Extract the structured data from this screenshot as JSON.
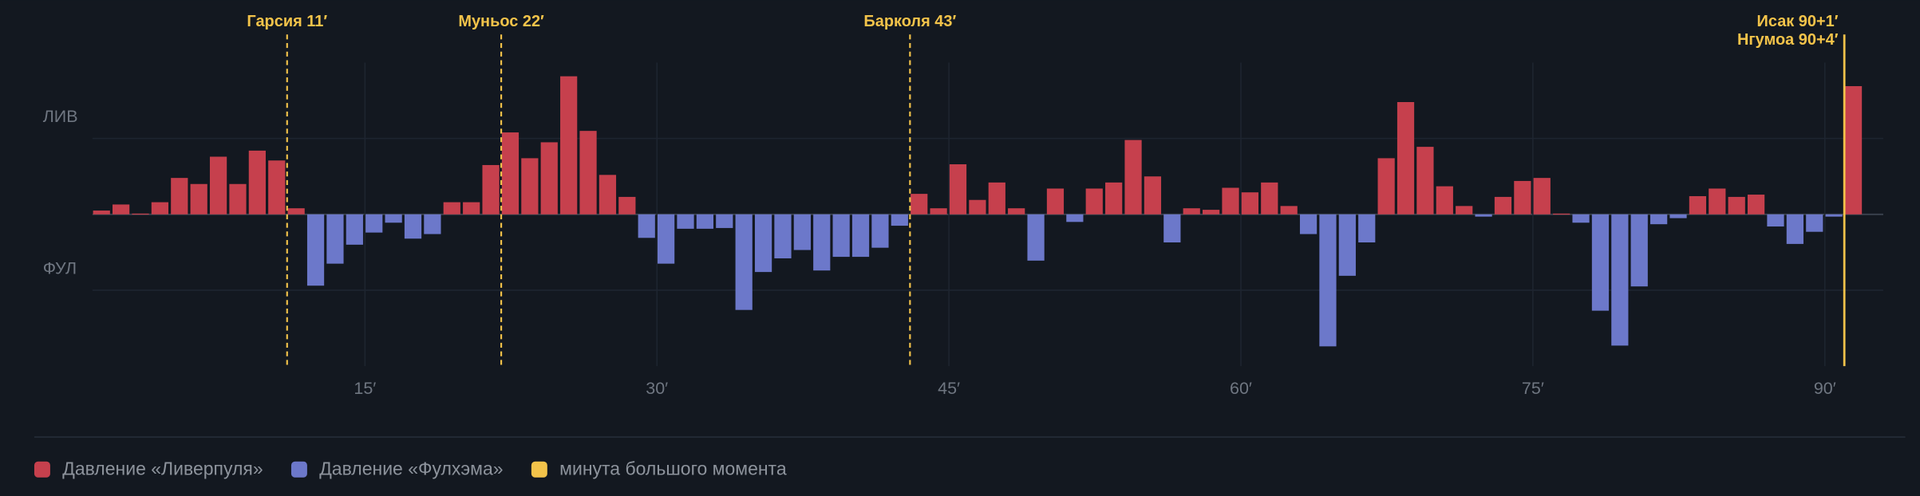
{
  "chart_data": {
    "type": "bar",
    "x": [
      1,
      2,
      3,
      4,
      5,
      6,
      7,
      8,
      9,
      10,
      11,
      12,
      13,
      14,
      15,
      16,
      17,
      18,
      19,
      20,
      21,
      22,
      23,
      24,
      25,
      26,
      27,
      28,
      29,
      30,
      31,
      32,
      33,
      34,
      35,
      36,
      37,
      38,
      39,
      40,
      41,
      42,
      43,
      44,
      45,
      46,
      47,
      48,
      49,
      50,
      51,
      52,
      53,
      54,
      55,
      56,
      57,
      58,
      59,
      60,
      61,
      62,
      63,
      64,
      65,
      66,
      67,
      68,
      69,
      70,
      71,
      72,
      73,
      74,
      75,
      76,
      77,
      78,
      79,
      80,
      81,
      82,
      83,
      84,
      85,
      86,
      87,
      88,
      89,
      90,
      91
    ],
    "values": [
      5,
      13,
      1,
      16,
      48,
      40,
      76,
      40,
      84,
      71,
      8,
      -94,
      -65,
      -40,
      -24,
      -11,
      -32,
      -26,
      16,
      16,
      65,
      108,
      74,
      95,
      182,
      110,
      52,
      23,
      -31,
      -65,
      -19,
      -19,
      -18,
      -126,
      -76,
      -58,
      -47,
      -74,
      -56,
      -56,
      -44,
      -15,
      27,
      8,
      66,
      19,
      42,
      8,
      -61,
      34,
      -10,
      34,
      42,
      98,
      50,
      -37,
      8,
      6,
      35,
      29,
      42,
      11,
      -26,
      -174,
      -81,
      -37,
      74,
      148,
      89,
      37,
      11,
      -3,
      23,
      44,
      48,
      1,
      -11,
      -127,
      -173,
      -95,
      -13,
      -5,
      24,
      34,
      23,
      26,
      -16,
      -39,
      -23,
      -3,
      169
    ],
    "xlim": [
      1,
      93
    ],
    "xticks": [
      {
        "value": 15,
        "label": "15′"
      },
      {
        "value": 30,
        "label": "30′"
      },
      {
        "value": 45,
        "label": "45′"
      },
      {
        "value": 60,
        "label": "60′"
      },
      {
        "value": 75,
        "label": "75′"
      },
      {
        "value": 90,
        "label": "90′"
      }
    ],
    "ylim": [
      -200,
      200
    ],
    "yticks": [
      {
        "value": 100,
        "label": "ЛИВ"
      },
      0,
      {
        "value": -100,
        "label": "ФУЛ"
      }
    ],
    "grid": true,
    "events": [
      {
        "x": 11,
        "label": "Гарсия 11′",
        "dashed": true
      },
      {
        "x": 22,
        "label": "Муньос 22′",
        "dashed": true
      },
      {
        "x": 43,
        "label": "Барколя 43′",
        "dashed": true
      },
      {
        "x": 91,
        "label": "Исак 90+1′",
        "dashed": false
      },
      {
        "x": 91,
        "label": "Нгумоа 90+4′",
        "dashed": false
      }
    ],
    "legend": [
      {
        "name": "Давление «Ливерпуля»",
        "color": "#c6404d"
      },
      {
        "name": "Давление «Фулхэма»",
        "color": "#6c78ca"
      },
      {
        "name": "минута большого момента",
        "color": "#f3c34a"
      }
    ]
  }
}
